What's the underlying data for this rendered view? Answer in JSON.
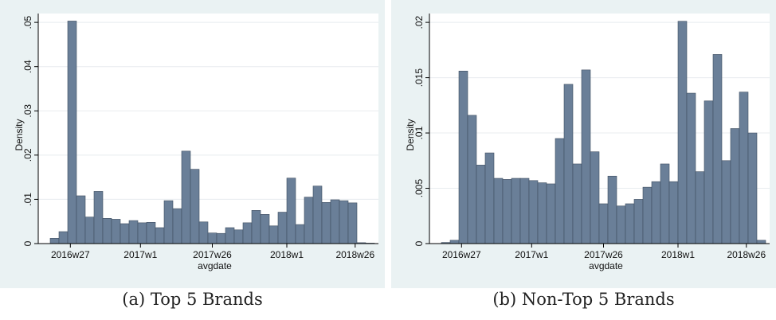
{
  "colors": {
    "bar_fill": "#6a7f98",
    "bar_edge": "#3f4e60",
    "plot_bg": "#ffffff",
    "outer_bg": "#eaf2f3",
    "grid": "#e8ecef",
    "axis": "#000000"
  },
  "chart_data": [
    {
      "type": "bar",
      "caption": "(a) Top 5 Brands",
      "xlabel": "avgdate",
      "ylabel": "Density",
      "x_tick_labels": [
        "2016w27",
        "2017w1",
        "2017w26",
        "2018w1",
        "2018w26"
      ],
      "x_tick_bins": [
        2.3,
        10.3,
        18.5,
        27.0,
        34.8
      ],
      "ylim": [
        0,
        0.052
      ],
      "y_ticks": [
        0,
        0.01,
        0.02,
        0.03,
        0.04,
        0.05
      ],
      "y_tick_labels": [
        "0",
        ".01",
        ".02",
        ".03",
        ".04",
        ".05"
      ],
      "grid": true,
      "values": [
        0.0012,
        0.0027,
        0.0503,
        0.0108,
        0.006,
        0.0118,
        0.0057,
        0.0055,
        0.0045,
        0.0052,
        0.0047,
        0.0048,
        0.0036,
        0.0097,
        0.0079,
        0.0209,
        0.0168,
        0.0049,
        0.0024,
        0.0023,
        0.0036,
        0.0031,
        0.0047,
        0.0075,
        0.0066,
        0.004,
        0.0071,
        0.0148,
        0.0043,
        0.0105,
        0.013,
        0.0093,
        0.0099,
        0.0097,
        0.0092,
        0.0002,
        0.0001
      ]
    },
    {
      "type": "bar",
      "caption": "(b) Non-Top 5 Brands",
      "xlabel": "avgdate",
      "ylabel": "Density",
      "x_tick_labels": [
        "2016w27",
        "2017w1",
        "2017w26",
        "2018w1",
        "2018w26"
      ],
      "x_tick_bins": [
        2.3,
        10.3,
        18.5,
        27.0,
        34.8
      ],
      "ylim": [
        0,
        0.0208
      ],
      "y_ticks": [
        0,
        0.005,
        0.01,
        0.015,
        0.02
      ],
      "y_tick_labels": [
        "0",
        ".005",
        ".01",
        ".015",
        ".02"
      ],
      "grid": true,
      "values": [
        0.0001,
        0.0003,
        0.0156,
        0.0116,
        0.0071,
        0.0082,
        0.0059,
        0.0058,
        0.0059,
        0.0059,
        0.0057,
        0.0055,
        0.0054,
        0.0095,
        0.0144,
        0.0072,
        0.0157,
        0.0083,
        0.0036,
        0.0061,
        0.0034,
        0.0036,
        0.004,
        0.0051,
        0.0056,
        0.0072,
        0.0056,
        0.0201,
        0.0136,
        0.0065,
        0.0129,
        0.0171,
        0.0075,
        0.0104,
        0.0137,
        0.01,
        0.0003
      ]
    }
  ]
}
